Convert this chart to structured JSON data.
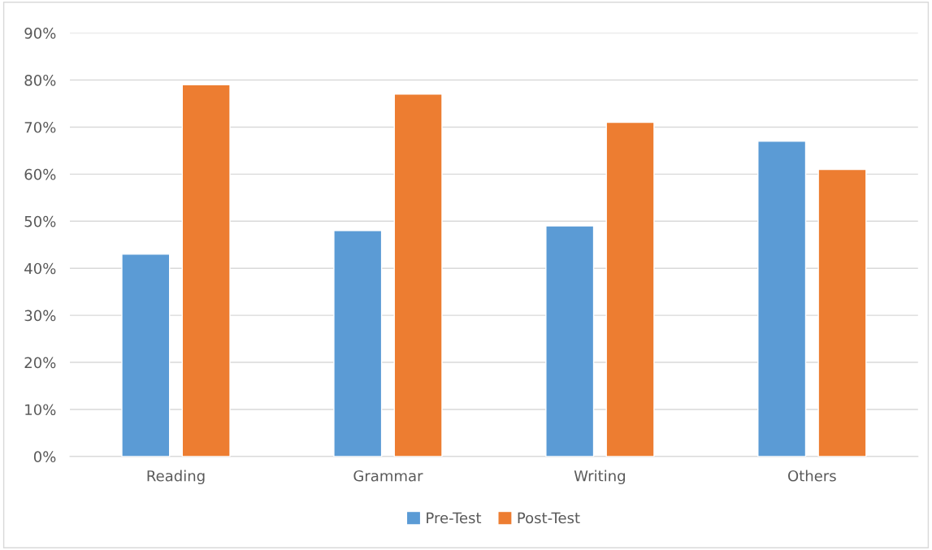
{
  "chart_data": {
    "type": "bar",
    "categories": [
      "Reading",
      "Grammar",
      "Writing",
      "Others"
    ],
    "series": [
      {
        "name": "Pre-Test",
        "color": "#5b9bd5",
        "values": [
          43,
          48,
          49,
          67
        ]
      },
      {
        "name": "Post-Test",
        "color": "#ed7d31",
        "values": [
          79,
          77,
          71,
          61
        ]
      }
    ],
    "ylim": [
      0,
      90
    ],
    "yticks": [
      {
        "value": 0,
        "label": "0%"
      },
      {
        "value": 10,
        "label": "10%"
      },
      {
        "value": 20,
        "label": "20%"
      },
      {
        "value": 30,
        "label": "30%"
      },
      {
        "value": 40,
        "label": "40%"
      },
      {
        "value": 50,
        "label": "50%"
      },
      {
        "value": 60,
        "label": "60%"
      },
      {
        "value": 70,
        "label": "70%"
      },
      {
        "value": 80,
        "label": "80%"
      },
      {
        "value": 90,
        "label": "90%"
      }
    ],
    "grid": "y",
    "legend": "bottom"
  }
}
